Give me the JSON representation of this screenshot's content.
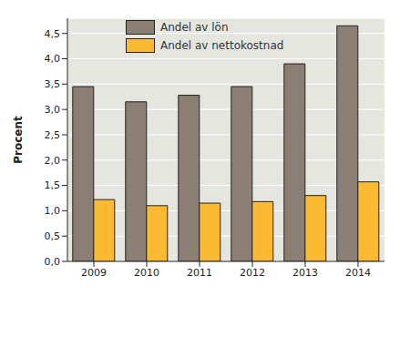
{
  "chart_data": {
    "type": "bar",
    "y_label": "Procent",
    "categories": [
      "2009",
      "2010",
      "2011",
      "2012",
      "2013",
      "2014"
    ],
    "series": [
      {
        "name": "Andel av lön",
        "color": "#8b7e74",
        "values": [
          3.45,
          3.15,
          3.28,
          3.45,
          3.9,
          4.65
        ]
      },
      {
        "name": "Andel av nettokostnad",
        "color": "#fbb934",
        "values": [
          1.22,
          1.1,
          1.15,
          1.18,
          1.3,
          1.57
        ]
      }
    ],
    "ylim": [
      0,
      4.8
    ],
    "yticks": [
      {
        "value": 0,
        "label": "0,0"
      },
      {
        "value": 0.5,
        "label": "0,5"
      },
      {
        "value": 1,
        "label": "1,0"
      },
      {
        "value": 1.5,
        "label": "1,5"
      },
      {
        "value": 2,
        "label": "2,0"
      },
      {
        "value": 2.5,
        "label": "2,5"
      },
      {
        "value": 3,
        "label": "3,0"
      },
      {
        "value": 3.5,
        "label": "3,5"
      },
      {
        "value": 4,
        "label": "4,0"
      },
      {
        "value": 4.5,
        "label": "4,5"
      }
    ],
    "grid": true,
    "legend": "upper left"
  }
}
